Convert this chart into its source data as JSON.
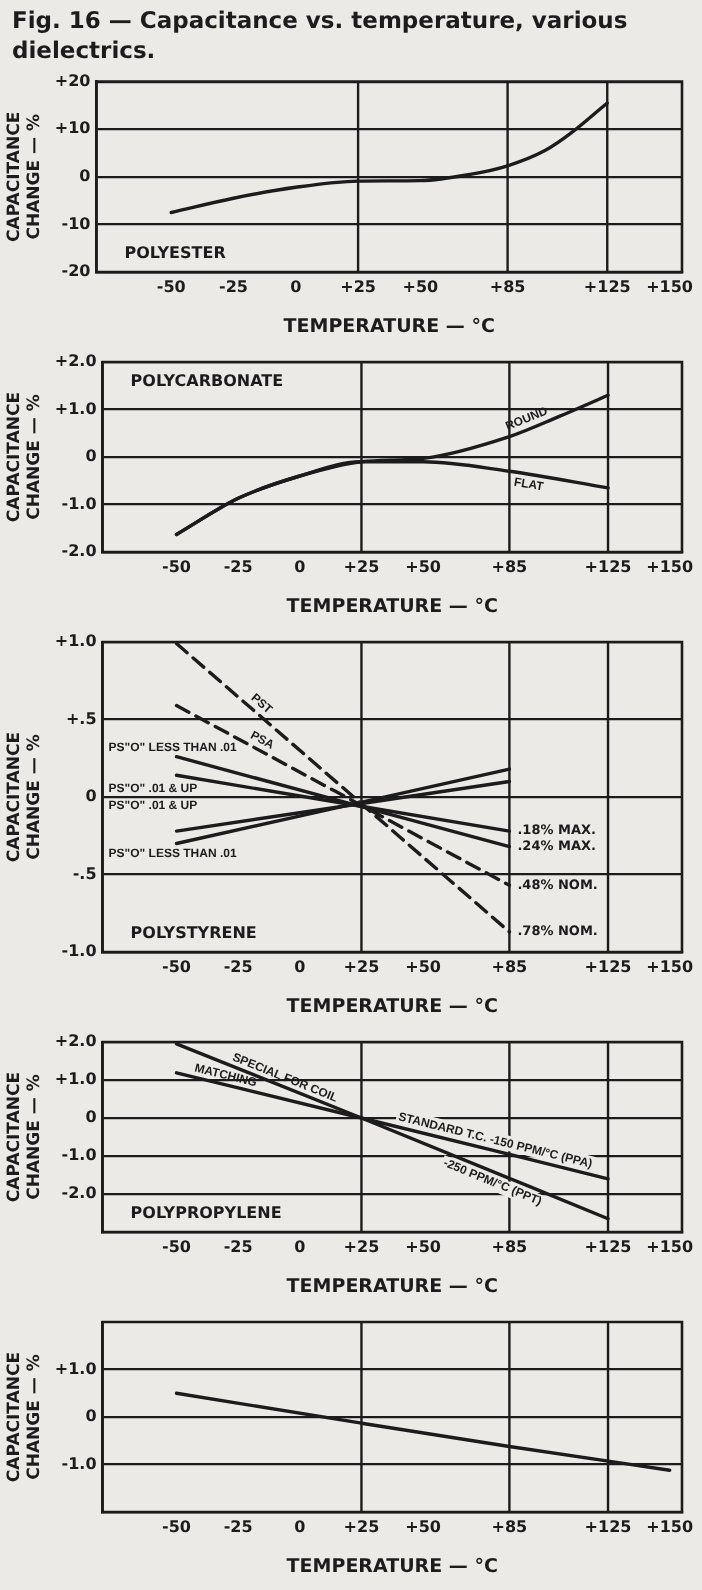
{
  "chart_data": [
    {
      "type": "line",
      "title": "Fig. 16 — Capacitance vs. temperature, various dielectrics.",
      "subtitle": "POLYESTER",
      "xlabel": "TEMPERATURE — °C",
      "ylabel": "CAPACITANCE CHANGE — %",
      "xlim": [
        -80,
        155
      ],
      "xticks": [
        -50,
        -25,
        0,
        {
          "value": 25,
          "label": "+25"
        },
        {
          "value": 50,
          "label": "+50"
        },
        {
          "value": 85,
          "label": "+85"
        },
        {
          "value": 125,
          "label": "+125"
        },
        {
          "value": 150,
          "label": "+150"
        }
      ],
      "ylim": [
        -20,
        20
      ],
      "yticks": [
        {
          "value": 20,
          "label": "+20"
        },
        {
          "value": 10,
          "label": "+10"
        },
        0,
        -10,
        -20
      ],
      "grid": "y",
      "legend": false,
      "marker": "none",
      "line_style": "solid",
      "ref_lines": [
        {
          "axis": "x",
          "value": 25,
          "color": "#1c1c1c"
        },
        {
          "axis": "x",
          "value": 85,
          "color": "#1c1c1c"
        },
        {
          "axis": "x",
          "value": 125,
          "color": "#1c1c1c"
        }
      ],
      "series": [
        {
          "color": "#1c1c1c",
          "x": [
            -50,
            -25,
            0,
            25,
            50,
            70,
            85,
            100,
            110,
            125
          ],
          "values": [
            -7.5,
            -4.5,
            -2.2,
            -0.9,
            -0.8,
            0.5,
            2.3,
            5.5,
            9,
            15.5
          ]
        }
      ]
    },
    {
      "type": "line",
      "subtitle": "POLYCARBONATE",
      "xlabel": "TEMPERATURE — °C",
      "ylabel": "CAPACITANCE CHANGE — %",
      "xlim": [
        -80,
        155
      ],
      "xticks": [
        -50,
        -25,
        0,
        {
          "value": 25,
          "label": "+25"
        },
        {
          "value": 50,
          "label": "+50"
        },
        {
          "value": 85,
          "label": "+85"
        },
        {
          "value": 125,
          "label": "+125"
        },
        {
          "value": 150,
          "label": "+150"
        }
      ],
      "ylim": [
        -2,
        2
      ],
      "yticks": [
        {
          "value": 2,
          "label": "+2.0"
        },
        {
          "value": 1,
          "label": "+1.0"
        },
        0,
        {
          "value": -1,
          "label": "-1.0"
        },
        {
          "value": -2,
          "label": "-2.0"
        }
      ],
      "grid": "y",
      "legend": false,
      "marker": "none",
      "line_style": "solid",
      "ref_lines": [
        {
          "axis": "x",
          "value": 25,
          "color": "#1c1c1c"
        },
        {
          "axis": "x",
          "value": 85,
          "color": "#1c1c1c"
        },
        {
          "axis": "x",
          "value": 125,
          "color": "#1c1c1c"
        }
      ],
      "series": [
        {
          "name": "ROUND",
          "color": "#1c1c1c",
          "x": [
            -50,
            -25,
            0,
            25,
            50,
            85,
            105,
            125
          ],
          "values": [
            -1.63,
            -0.87,
            -0.4,
            -0.1,
            -0.03,
            0.43,
            0.85,
            1.3
          ]
        },
        {
          "name": "FLAT",
          "color": "#1c1c1c",
          "x": [
            -50,
            -25,
            0,
            25,
            50,
            85,
            125
          ],
          "values": [
            -1.63,
            -0.87,
            -0.4,
            -0.1,
            -0.1,
            -0.3,
            -0.65
          ]
        }
      ]
    },
    {
      "type": "line",
      "subtitle": "POLYSTYRENE",
      "xlabel": "TEMPERATURE — °C",
      "ylabel": "CAPACITANCE CHANGE — %",
      "xlim": [
        -80,
        155
      ],
      "xticks": [
        -50,
        -25,
        0,
        {
          "value": 25,
          "label": "+25"
        },
        {
          "value": 50,
          "label": "+50"
        },
        {
          "value": 85,
          "label": "+85"
        },
        {
          "value": 125,
          "label": "+125"
        },
        {
          "value": 150,
          "label": "+150"
        }
      ],
      "ylim": [
        -1,
        1
      ],
      "yticks": [
        {
          "value": 1,
          "label": "+1.0"
        },
        {
          "value": 0.5,
          "label": "+.5"
        },
        0,
        {
          "value": -0.5,
          "label": "-.5"
        },
        {
          "value": -1,
          "label": "-1.0"
        }
      ],
      "grid": "y",
      "legend": false,
      "marker": "none",
      "line_style": "solid",
      "ref_lines": [
        {
          "axis": "x",
          "value": 25,
          "color": "#1c1c1c"
        },
        {
          "axis": "x",
          "value": 85,
          "color": "#1c1c1c"
        },
        {
          "axis": "x",
          "value": 125,
          "color": "#1c1c1c"
        }
      ],
      "annotations": [
        {
          "text": ".18% MAX.",
          "x": 85,
          "y": -0.22
        },
        {
          "text": ".24% MAX.",
          "x": 85,
          "y": -0.32
        },
        {
          "text": ".48% NOM.",
          "x": 85,
          "y": -0.57
        },
        {
          "text": ".78% NOM.",
          "x": 85,
          "y": -0.87
        }
      ],
      "series": [
        {
          "name": "PST",
          "color": "#1c1c1c",
          "line_style": "dashed",
          "x": [
            -50,
            85
          ],
          "values": [
            0.99,
            -0.87
          ]
        },
        {
          "name": "PSA",
          "color": "#1c1c1c",
          "line_style": "dashed",
          "x": [
            -50,
            85
          ],
          "values": [
            0.59,
            -0.57
          ]
        },
        {
          "name": "PS\"O\" LESS THAN .01",
          "color": "#1c1c1c",
          "x": [
            -50,
            85
          ],
          "values": [
            0.26,
            -0.32
          ]
        },
        {
          "name": "PS\"O\" .01 & UP",
          "color": "#1c1c1c",
          "x": [
            -50,
            85
          ],
          "values": [
            0.14,
            -0.22
          ]
        },
        {
          "name": "PS\"O\" .01 & UP",
          "color": "#1c1c1c",
          "x": [
            -50,
            85
          ],
          "values": [
            -0.22,
            0.1
          ]
        },
        {
          "name": "PS\"O\" LESS THAN .01",
          "color": "#1c1c1c",
          "x": [
            -50,
            85
          ],
          "values": [
            -0.3,
            0.18
          ]
        }
      ]
    },
    {
      "type": "line",
      "subtitle": "POLYPROPYLENE",
      "xlabel": "TEMPERATURE — °C",
      "ylabel": "CAPACITANCE CHANGE — %",
      "xlim": [
        -80,
        155
      ],
      "xticks": [
        -50,
        -25,
        0,
        {
          "value": 25,
          "label": "+25"
        },
        {
          "value": 50,
          "label": "+50"
        },
        {
          "value": 85,
          "label": "+85"
        },
        {
          "value": 125,
          "label": "+125"
        },
        {
          "value": 150,
          "label": "+150"
        }
      ],
      "ylim": [
        -3,
        2
      ],
      "yticks": [
        {
          "value": 2,
          "label": "+2.0"
        },
        {
          "value": 1,
          "label": "+1.0"
        },
        0,
        {
          "value": -1,
          "label": "-1.0"
        },
        {
          "value": -2,
          "label": "-2.0"
        }
      ],
      "grid": "y",
      "legend": false,
      "marker": "none",
      "line_style": "solid",
      "ref_lines": [
        {
          "axis": "x",
          "value": 25,
          "color": "#1c1c1c"
        },
        {
          "axis": "x",
          "value": 85,
          "color": "#1c1c1c"
        },
        {
          "axis": "x",
          "value": 125,
          "color": "#1c1c1c"
        }
      ],
      "annotations": [
        {
          "text": "SPECIAL FOR COIL",
          "x": -30,
          "y": 1.43
        },
        {
          "text": "MATCHING",
          "x": -45,
          "y": 1.11
        }
      ],
      "series": [
        {
          "name": "-250 PPM/°C (PPT)",
          "color": "#1c1c1c",
          "x": [
            -50,
            25,
            125
          ],
          "values": [
            1.95,
            0,
            -2.65
          ]
        },
        {
          "name": "STANDARD T.C. -150 PPM/°C (PPA)",
          "color": "#1c1c1c",
          "x": [
            -50,
            25,
            125
          ],
          "values": [
            1.19,
            0,
            -1.6
          ]
        }
      ]
    },
    {
      "type": "line",
      "xlabel": "TEMPERATURE — °C",
      "ylabel": "CAPACITANCE CHANGE — %",
      "xlim": [
        -80,
        155
      ],
      "xticks": [
        -50,
        -25,
        0,
        {
          "value": 25,
          "label": "+25"
        },
        {
          "value": 50,
          "label": "+50"
        },
        {
          "value": 85,
          "label": "+85"
        },
        {
          "value": 125,
          "label": "+125"
        },
        {
          "value": 150,
          "label": "+150"
        }
      ],
      "ylim": [
        -2,
        2
      ],
      "yticks": [
        {
          "value": 1,
          "label": "+1.0"
        },
        0,
        {
          "value": -1,
          "label": "-1.0"
        }
      ],
      "grid": "y",
      "legend": false,
      "marker": "none",
      "line_style": "solid",
      "ref_lines": [
        {
          "axis": "x",
          "value": 25,
          "color": "#1c1c1c"
        },
        {
          "axis": "x",
          "value": 85,
          "color": "#1c1c1c"
        },
        {
          "axis": "x",
          "value": 125,
          "color": "#1c1c1c"
        }
      ],
      "series": [
        {
          "color": "#1c1c1c",
          "x": [
            -50,
            25,
            85,
            150
          ],
          "values": [
            0.5,
            -0.13,
            -0.62,
            -1.12
          ]
        }
      ]
    }
  ]
}
